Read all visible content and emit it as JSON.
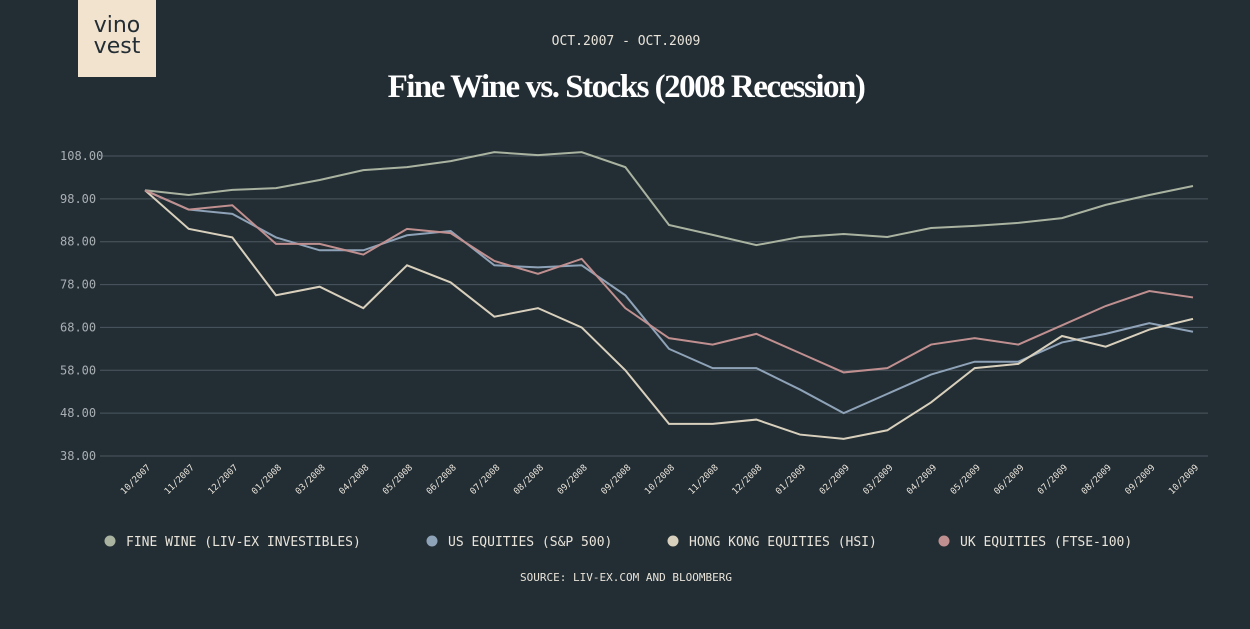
{
  "logo": {
    "line1": "vino",
    "line2": "vest"
  },
  "chart_data": {
    "type": "line",
    "subtitle": "OCT.2007 - OCT.2009",
    "title": "Fine Wine vs. Stocks (2008 Recession)",
    "source": "SOURCE: LIV-EX.COM AND BLOOMBERG",
    "categories": [
      "10/2007",
      "11/2007",
      "12/2007",
      "01/2008",
      "03/2008",
      "04/2008",
      "05/2008",
      "06/2008",
      "07/2008",
      "08/2008",
      "09/2008",
      "09/2008",
      "10/2008",
      "11/2008",
      "12/2008",
      "01/2009",
      "02/2009",
      "03/2009",
      "04/2009",
      "05/2009",
      "06/2009",
      "07/2009",
      "08/2009",
      "09/2009",
      "10/2009"
    ],
    "ylim": [
      38,
      110
    ],
    "yticks": [
      {
        "value": 38,
        "label": "38.00"
      },
      {
        "value": 48,
        "label": "48.00"
      },
      {
        "value": 58,
        "label": "58.00"
      },
      {
        "value": 68,
        "label": "68.00"
      },
      {
        "value": 78,
        "label": "78.00"
      },
      {
        "value": 88,
        "label": "88.00"
      },
      {
        "value": 98,
        "label": "98.00"
      },
      {
        "value": 108,
        "label": "108.00"
      }
    ],
    "grid": true,
    "legend": "bottom",
    "series": [
      {
        "name": "FINE WINE (LIV-EX INVESTIBLES)",
        "color": "#a9b3a0",
        "values": [
          100,
          98.9,
          100.1,
          100.5,
          102.4,
          104.7,
          105.4,
          106.8,
          108.9,
          108.2,
          108.9,
          105.4,
          91.9,
          89.6,
          87.2,
          89.1,
          89.8,
          89.1,
          91.2,
          91.7,
          92.4,
          93.5,
          96.6,
          98.9,
          101
        ]
      },
      {
        "name": "US EQUITIES (S&P 500)",
        "color": "#8fa3b8",
        "values": [
          100,
          95.5,
          94.5,
          89,
          86,
          86,
          89.5,
          90.5,
          82.5,
          82,
          82.5,
          75.5,
          63,
          58.5,
          58.5,
          53.5,
          48,
          52.5,
          57,
          60,
          60,
          64.5,
          66.5,
          69,
          67
        ]
      },
      {
        "name": "HONG KONG EQUITIES (HSI)",
        "color": "#d8d0bc",
        "values": [
          100,
          91,
          89,
          75.5,
          77.5,
          72.5,
          82.5,
          78.5,
          70.5,
          72.5,
          68,
          58,
          45.5,
          45.5,
          46.5,
          43,
          42,
          44,
          50.5,
          58.5,
          59.5,
          66,
          63.5,
          67.5,
          70
        ]
      },
      {
        "name": "UK EQUITIES (FTSE-100)",
        "color": "#c09090",
        "values": [
          100,
          95.5,
          96.5,
          87.5,
          87.5,
          85,
          91,
          90,
          83.5,
          80.5,
          84,
          72.5,
          65.5,
          64,
          66.5,
          62,
          57.5,
          58.5,
          64,
          65.5,
          64,
          68.5,
          73,
          76.5,
          75
        ]
      }
    ]
  }
}
